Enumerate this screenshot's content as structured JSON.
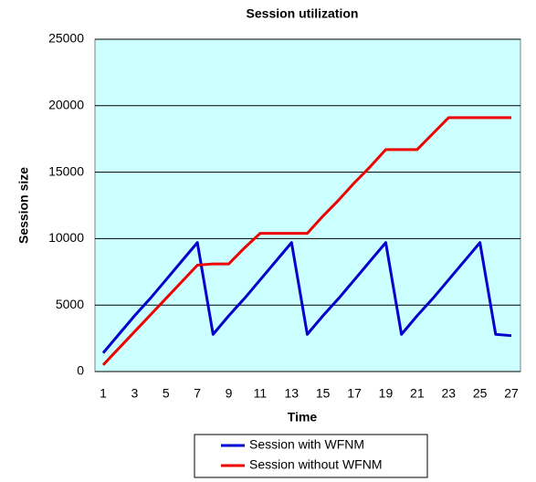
{
  "chart_data": {
    "type": "line",
    "title": "Session utilization",
    "x_label": "Time",
    "y_label": "Session size",
    "categories": [
      "1",
      null,
      "3",
      null,
      "5",
      null,
      "7",
      null,
      "9",
      null,
      "11",
      null,
      "13",
      null,
      "15",
      null,
      "17",
      null,
      "19",
      null,
      "21",
      null,
      "23",
      null,
      "25",
      null,
      "27"
    ],
    "series": [
      {
        "name": "Session with WFNM",
        "color": "#0000cc",
        "values": [
          1400,
          2800,
          4200,
          5500,
          6900,
          8300,
          9700,
          2800,
          4200,
          5500,
          6900,
          8300,
          9700,
          2800,
          4200,
          5500,
          6900,
          8300,
          9700,
          2800,
          4200,
          5500,
          6900,
          8300,
          9700,
          2800,
          2700
        ]
      },
      {
        "name": "Session without WFNM",
        "color": "#ee0000",
        "values": [
          500,
          1750,
          3000,
          4250,
          5500,
          6750,
          8000,
          8100,
          8100,
          9300,
          10400,
          10400,
          10400,
          10400,
          11700,
          12900,
          14200,
          15400,
          16700,
          16700,
          16700,
          17900,
          19100,
          19100,
          19100,
          19100,
          19100
        ]
      }
    ],
    "ylim": [
      0,
      25000
    ],
    "yticks": [
      0,
      5000,
      10000,
      15000,
      20000,
      25000
    ],
    "grid": true,
    "background": "#ccffff",
    "legend": "bottom"
  }
}
